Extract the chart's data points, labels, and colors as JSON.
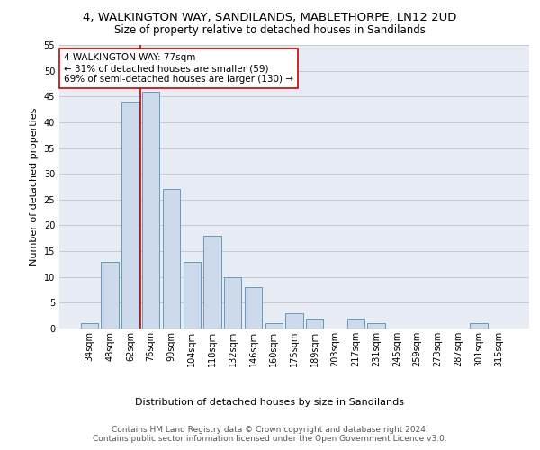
{
  "title_line1": "4, WALKINGTON WAY, SANDILANDS, MABLETHORPE, LN12 2UD",
  "title_line2": "Size of property relative to detached houses in Sandilands",
  "xlabel": "Distribution of detached houses by size in Sandilands",
  "ylabel": "Number of detached properties",
  "categories": [
    "34sqm",
    "48sqm",
    "62sqm",
    "76sqm",
    "90sqm",
    "104sqm",
    "118sqm",
    "132sqm",
    "146sqm",
    "160sqm",
    "175sqm",
    "189sqm",
    "203sqm",
    "217sqm",
    "231sqm",
    "245sqm",
    "259sqm",
    "273sqm",
    "287sqm",
    "301sqm",
    "315sqm"
  ],
  "values": [
    1,
    13,
    44,
    46,
    27,
    13,
    18,
    10,
    8,
    1,
    3,
    2,
    0,
    2,
    1,
    0,
    0,
    0,
    0,
    1,
    0
  ],
  "bar_color": "#ccdaeb",
  "bar_edge_color": "#6699bb",
  "highlight_line_color": "#cc0000",
  "highlight_bar_index": 3,
  "annotation_text": "4 WALKINGTON WAY: 77sqm\n← 31% of detached houses are smaller (59)\n69% of semi-detached houses are larger (130) →",
  "annotation_box_color": "#ffffff",
  "annotation_box_edge": "#cc0000",
  "ylim": [
    0,
    55
  ],
  "yticks": [
    0,
    5,
    10,
    15,
    20,
    25,
    30,
    35,
    40,
    45,
    50,
    55
  ],
  "grid_color": "#c8c8d0",
  "bg_color": "#e8ecf4",
  "footer_line1": "Contains HM Land Registry data © Crown copyright and database right 2024.",
  "footer_line2": "Contains public sector information licensed under the Open Government Licence v3.0.",
  "title_fontsize": 9.5,
  "subtitle_fontsize": 8.5,
  "axis_label_fontsize": 8,
  "tick_fontsize": 7,
  "annotation_fontsize": 7.5,
  "footer_fontsize": 6.5,
  "ylabel_fontsize": 8
}
